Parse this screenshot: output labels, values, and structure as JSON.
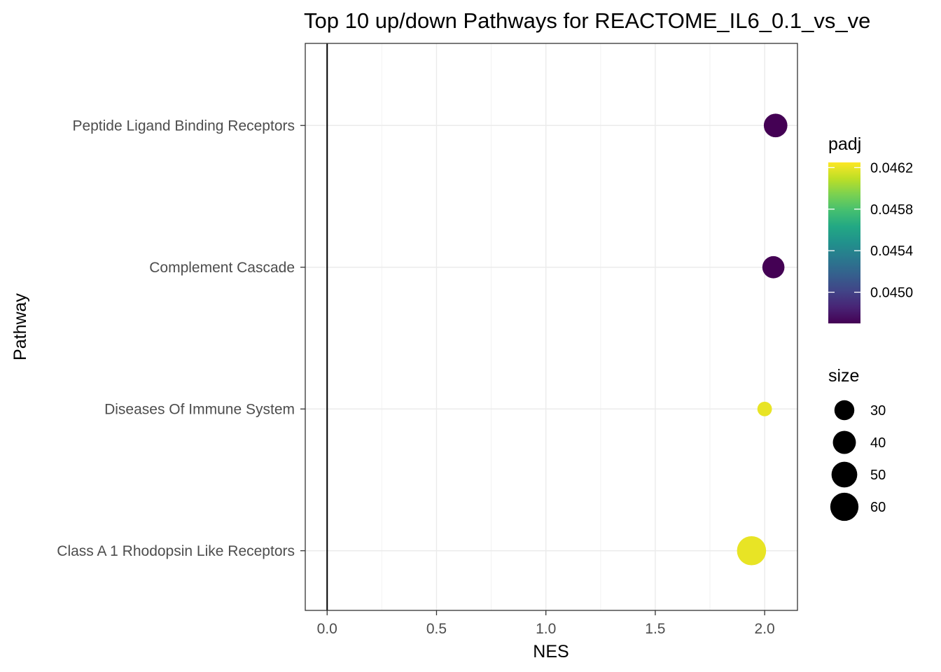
{
  "chart_data": {
    "type": "scatter",
    "title": "Top 10 up/down Pathways for  REACTOME_IL6_0.1_vs_ve",
    "xlabel": "NES",
    "ylabel": "Pathway",
    "xlim": [
      -0.1,
      2.15
    ],
    "x_ticks": [
      "0.0",
      "0.5",
      "1.0",
      "1.5",
      "2.0"
    ],
    "x_tick_values": [
      0.0,
      0.5,
      1.0,
      1.5,
      2.0
    ],
    "vline_x": 0,
    "grid": true,
    "categories": [
      "Peptide Ligand Binding Receptors",
      "Complement Cascade",
      "Diseases Of Immune System",
      "Class A 1 Rhodopsin Like Receptors"
    ],
    "points": [
      {
        "pathway": "Peptide Ligand Binding Receptors",
        "NES": 2.05,
        "padj": 0.0447,
        "size": 42
      },
      {
        "pathway": "Complement Cascade",
        "NES": 2.04,
        "padj": 0.0447,
        "size": 37
      },
      {
        "pathway": "Diseases Of Immune System",
        "NES": 2.0,
        "padj": 0.0462,
        "size": 16
      },
      {
        "pathway": "Class A 1 Rhodopsin Like Receptors",
        "NES": 1.94,
        "padj": 0.0462,
        "size": 64
      }
    ],
    "color_legend": {
      "title": "padj",
      "labels": [
        "0.0462",
        "0.0458",
        "0.0454",
        "0.0450"
      ],
      "values": [
        0.0462,
        0.0458,
        0.0454,
        0.045
      ],
      "range": [
        0.0447,
        0.04625
      ],
      "colormap": "viridis"
    },
    "size_legend": {
      "title": "size",
      "labels": [
        "30",
        "40",
        "50",
        "60"
      ],
      "values": [
        30,
        40,
        50,
        60
      ]
    },
    "legend_position": "right"
  }
}
